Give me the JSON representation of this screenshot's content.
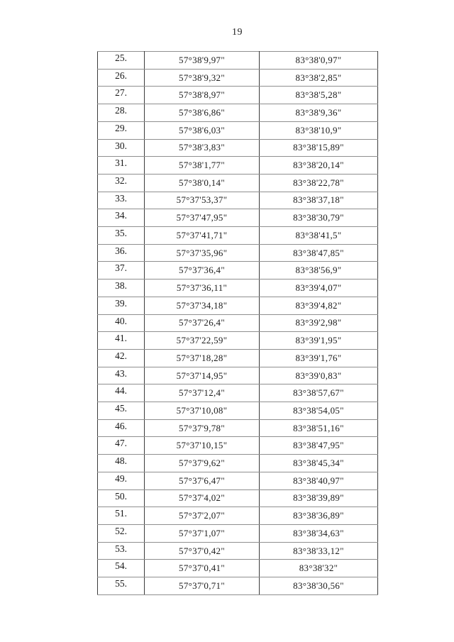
{
  "page": {
    "number": "19"
  },
  "table": {
    "rows": [
      {
        "n": "25.",
        "lat": "57°38'9,97\"",
        "lon": "83°38'0,97\""
      },
      {
        "n": "26.",
        "lat": "57°38'9,32\"",
        "lon": "83°38'2,85\""
      },
      {
        "n": "27.",
        "lat": "57°38'8,97\"",
        "lon": "83°38'5,28\""
      },
      {
        "n": "28.",
        "lat": "57°38'6,86\"",
        "lon": "83°38'9,36\""
      },
      {
        "n": "29.",
        "lat": "57°38'6,03\"",
        "lon": "83°38'10,9\""
      },
      {
        "n": "30.",
        "lat": "57°38'3,83\"",
        "lon": "83°38'15,89\""
      },
      {
        "n": "31.",
        "lat": "57°38'1,77\"",
        "lon": "83°38'20,14\""
      },
      {
        "n": "32.",
        "lat": "57°38'0,14\"",
        "lon": "83°38'22,78\""
      },
      {
        "n": "33.",
        "lat": "57°37'53,37\"",
        "lon": "83°38'37,18\""
      },
      {
        "n": "34.",
        "lat": "57°37'47,95\"",
        "lon": "83°38'30,79\""
      },
      {
        "n": "35.",
        "lat": "57°37'41,71\"",
        "lon": "83°38'41,5\""
      },
      {
        "n": "36.",
        "lat": "57°37'35,96\"",
        "lon": "83°38'47,85\""
      },
      {
        "n": "37.",
        "lat": "57°37'36,4\"",
        "lon": "83°38'56,9\""
      },
      {
        "n": "38.",
        "lat": "57°37'36,11\"",
        "lon": "83°39'4,07\""
      },
      {
        "n": "39.",
        "lat": "57°37'34,18\"",
        "lon": "83°39'4,82\""
      },
      {
        "n": "40.",
        "lat": "57°37'26,4\"",
        "lon": "83°39'2,98\""
      },
      {
        "n": "41.",
        "lat": "57°37'22,59\"",
        "lon": "83°39'1,95\""
      },
      {
        "n": "42.",
        "lat": "57°37'18,28\"",
        "lon": "83°39'1,76\""
      },
      {
        "n": "43.",
        "lat": "57°37'14,95\"",
        "lon": "83°39'0,83\""
      },
      {
        "n": "44.",
        "lat": "57°37'12,4\"",
        "lon": "83°38'57,67\""
      },
      {
        "n": "45.",
        "lat": "57°37'10,08\"",
        "lon": "83°38'54,05\""
      },
      {
        "n": "46.",
        "lat": "57°37'9,78\"",
        "lon": "83°38'51,16\""
      },
      {
        "n": "47.",
        "lat": "57°37'10,15\"",
        "lon": "83°38'47,95\""
      },
      {
        "n": "48.",
        "lat": "57°37'9,62\"",
        "lon": "83°38'45,34\""
      },
      {
        "n": "49.",
        "lat": "57°37'6,47\"",
        "lon": "83°38'40,97\""
      },
      {
        "n": "50.",
        "lat": "57°37'4,02\"",
        "lon": "83°38'39,89\""
      },
      {
        "n": "51.",
        "lat": "57°37'2,07\"",
        "lon": "83°38'36,89\""
      },
      {
        "n": "52.",
        "lat": "57°37'1,07\"",
        "lon": "83°38'34,63\""
      },
      {
        "n": "53.",
        "lat": "57°37'0,42\"",
        "lon": "83°38'33,12\""
      },
      {
        "n": "54.",
        "lat": "57°37'0,41\"",
        "lon": "83°38'32\""
      },
      {
        "n": "55.",
        "lat": "57°37'0,71\"",
        "lon": "83°38'30,56\""
      }
    ]
  }
}
